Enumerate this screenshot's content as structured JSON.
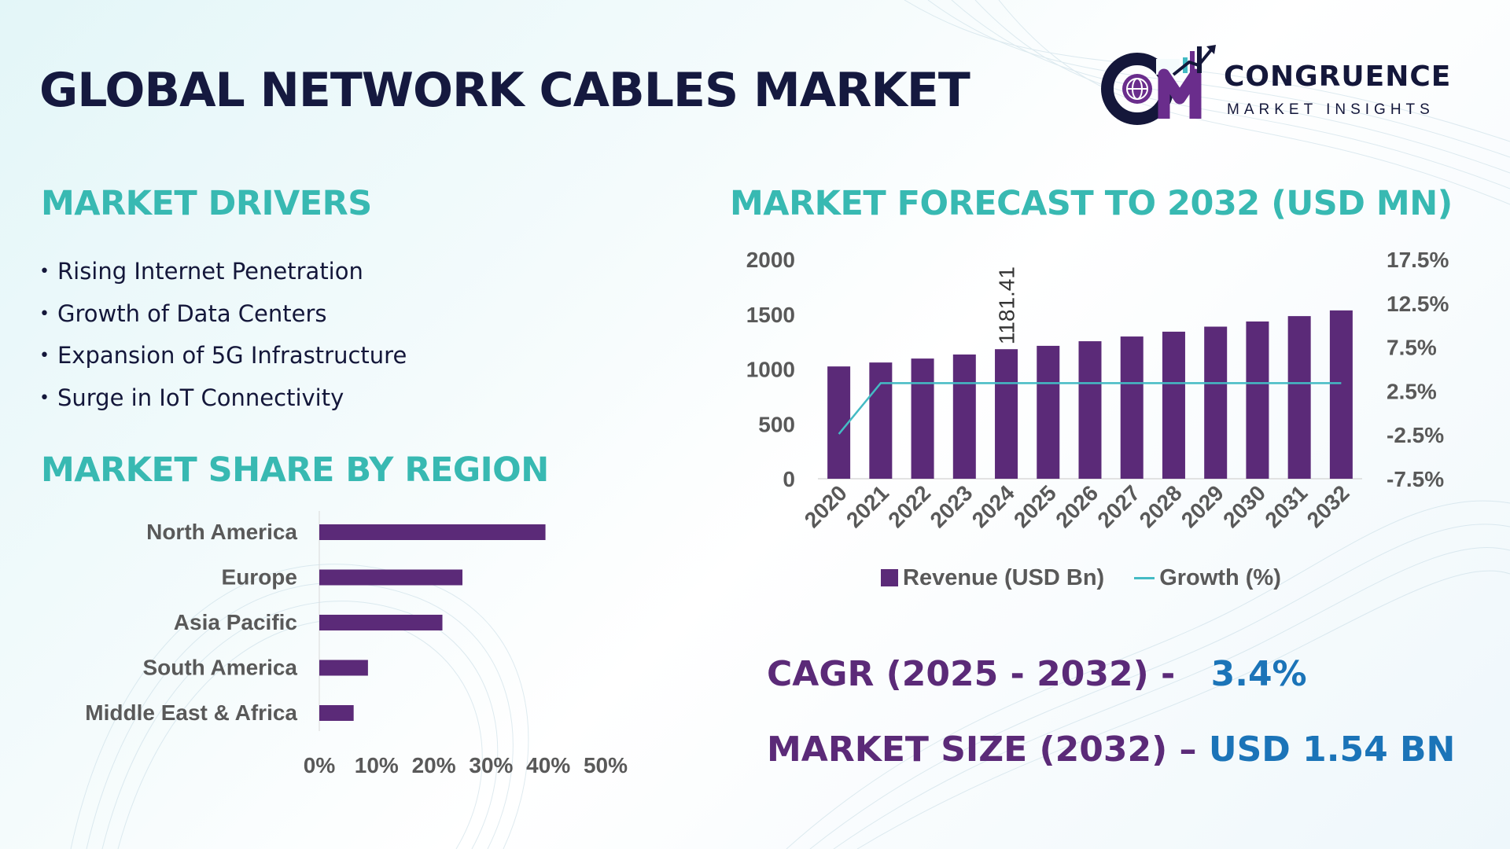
{
  "header": {
    "title": "GLOBAL NETWORK CABLES MARKET",
    "logo_line1": "CONGRUENCE",
    "logo_line2": "MARKET INSIGHTS"
  },
  "drivers": {
    "title": "MARKET DRIVERS",
    "items": [
      "Rising Internet Penetration",
      "Growth of Data Centers",
      "Expansion of 5G Infrastructure",
      "Surge in IoT Connectivity"
    ]
  },
  "region": {
    "title": "MARKET SHARE BY REGION"
  },
  "forecast": {
    "title": "MARKET FORECAST TO 2032 (USD MN)"
  },
  "kpis": {
    "cagr_label": "CAGR (2025 - 2032) -",
    "cagr_value": "3.4%",
    "size_label": "MARKET SIZE (2032) –",
    "size_value": "USD 1.54 BN"
  },
  "colors": {
    "bar": "#5b2a78",
    "line": "#44bbc4",
    "title_teal": "#38b9b2",
    "navy": "#14173a",
    "kpi_blue": "#1b74b8"
  },
  "chart_data": [
    {
      "type": "bar",
      "orientation": "horizontal",
      "categories": [
        "North America",
        "Europe",
        "Asia Pacific",
        "South America",
        "Middle East & Africa"
      ],
      "values": [
        39.5,
        25,
        21.5,
        8.5,
        6
      ],
      "x_ticks": [
        "0%",
        "10%",
        "20%",
        "30%",
        "40%",
        "50%"
      ],
      "xlim": [
        0,
        50
      ],
      "grid": false,
      "legend": "none"
    },
    {
      "type": "bar",
      "categories": [
        "2020",
        "2021",
        "2022",
        "2023",
        "2024",
        "2025",
        "2026",
        "2027",
        "2028",
        "2029",
        "2030",
        "2031",
        "2032"
      ],
      "series": [
        {
          "name": "Revenue (USD Bn)",
          "type": "bar",
          "axis": "left",
          "values": [
            1024,
            1060,
            1096,
            1133,
            1181.41,
            1212,
            1254,
            1297,
            1341,
            1387,
            1434,
            1483,
            1535
          ]
        },
        {
          "name": "Growth (%)",
          "type": "line",
          "axis": "right",
          "values": [
            -2.4,
            3.4,
            3.4,
            3.4,
            3.4,
            3.4,
            3.4,
            3.4,
            3.4,
            3.4,
            3.4,
            3.4,
            3.4
          ]
        }
      ],
      "data_labels": [
        {
          "index": 4,
          "text": "1181.41"
        }
      ],
      "ylim": [
        0,
        2000
      ],
      "y_ticks": [
        "0",
        "500",
        "1000",
        "1500",
        "2000"
      ],
      "y2lim": [
        -7.5,
        17.5
      ],
      "y2_ticks": [
        "-7.5%",
        "-2.5%",
        "2.5%",
        "7.5%",
        "12.5%",
        "17.5%"
      ],
      "grid": false,
      "legend": "bottom"
    }
  ]
}
